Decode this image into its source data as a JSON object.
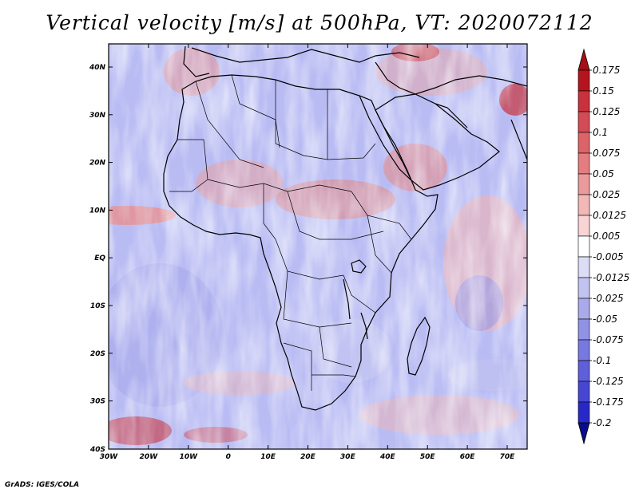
{
  "title": "Vertical velocity [m/s] at 500hPa, VT: 2020072112",
  "credit": "GrADS: IGES/COLA",
  "map": {
    "region": "Africa",
    "lat_labels": [
      "40N",
      "30N",
      "20N",
      "10N",
      "EQ",
      "10S",
      "20S",
      "30S",
      "40S"
    ],
    "lon_labels": [
      "30W",
      "20W",
      "10W",
      "0",
      "10E",
      "20E",
      "30E",
      "40E",
      "50E",
      "60E",
      "70E"
    ]
  },
  "colorbar": {
    "labels": [
      "0.175",
      "0.15",
      "0.125",
      "0.1",
      "0.075",
      "0.05",
      "0.025",
      "0.0125",
      "0.005",
      "-0.005",
      "-0.0125",
      "-0.025",
      "-0.05",
      "-0.075",
      "-0.1",
      "-0.125",
      "-0.175",
      "-0.2"
    ],
    "colors": [
      "#b4141e",
      "#c8323c",
      "#d24b55",
      "#dc6468",
      "#e47d80",
      "#eb9a9b",
      "#f2b7b7",
      "#f8d4d4",
      "#ffffff",
      "#dcdcf5",
      "#c3c3f0",
      "#aaaaeb",
      "#9191e6",
      "#7878e1",
      "#5f5fdc",
      "#4646d2",
      "#2828c8",
      "#1414a0"
    ],
    "top_arrow_color": "#a50f15",
    "bottom_arrow_color": "#0a0a8c"
  }
}
